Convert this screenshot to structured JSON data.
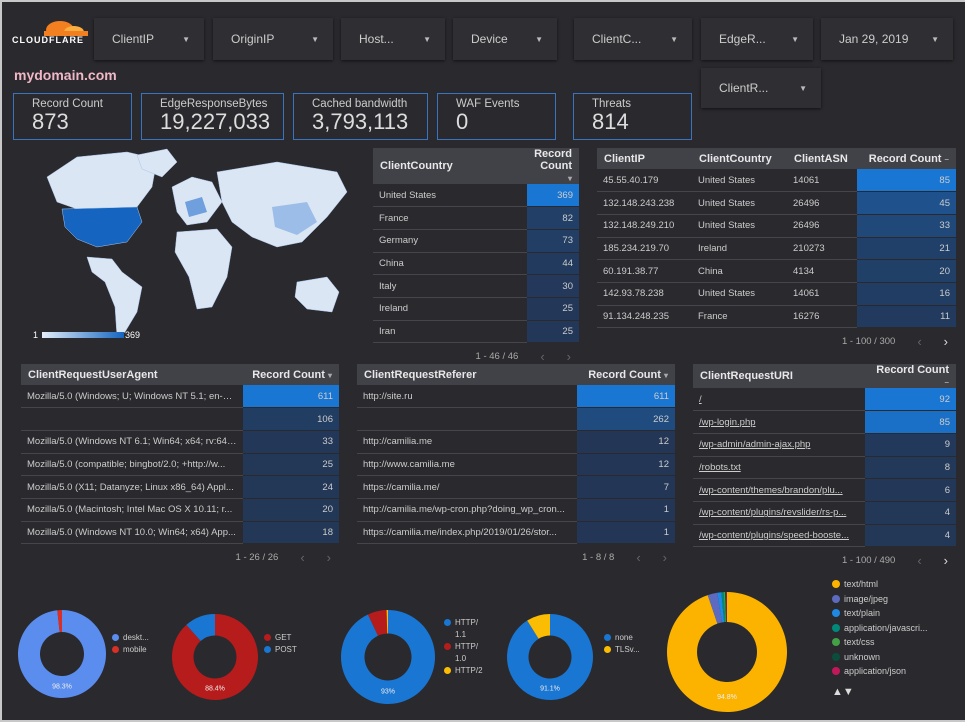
{
  "header": {
    "logo_text": "CLOUDFLARE",
    "title": "mydomain.com"
  },
  "filters": [
    {
      "label": "ClientIP"
    },
    {
      "label": "OriginIP"
    },
    {
      "label": "Host..."
    },
    {
      "label": "Device"
    },
    {
      "label": "ClientC..."
    },
    {
      "label": "EdgeR..."
    },
    {
      "label": "Jan 29, 2019"
    },
    {
      "label": "ClientR..."
    }
  ],
  "kpis": [
    {
      "label": "Record Count",
      "value": "873"
    },
    {
      "label": "EdgeResponseBytes",
      "value": "19,227,033"
    },
    {
      "label": "Cached bandwidth",
      "value": "3,793,113"
    },
    {
      "label": "WAF Events",
      "value": "0"
    },
    {
      "label": "Threats",
      "value": "814"
    }
  ],
  "map": {
    "legend_min": "1",
    "legend_max": "369",
    "highlight": "United States"
  },
  "colors": {
    "bar_max": "#1976d2",
    "bar_min": "#233655",
    "accent": "#3874c0"
  },
  "tables": [
    {
      "id": "country",
      "headers": [
        "ClientCountry",
        "Record Count"
      ],
      "sort": "▾",
      "rows": [
        [
          "United States",
          369
        ],
        [
          "France",
          82
        ],
        [
          "Germany",
          73
        ],
        [
          "China",
          44
        ],
        [
          "Italy",
          30
        ],
        [
          "Ireland",
          25
        ],
        [
          "Iran",
          25
        ]
      ],
      "pagination": "1 - 46 / 46"
    },
    {
      "id": "ip",
      "headers": [
        "ClientIP",
        "ClientCountry",
        "ClientASN",
        "Record Count"
      ],
      "sort": "–",
      "rows": [
        [
          "45.55.40.179",
          "United States",
          "14061",
          85
        ],
        [
          "132.148.243.238",
          "United States",
          "26496",
          45
        ],
        [
          "132.148.249.210",
          "United States",
          "26496",
          33
        ],
        [
          "185.234.219.70",
          "Ireland",
          "210273",
          21
        ],
        [
          "60.191.38.77",
          "China",
          "4134",
          20
        ],
        [
          "142.93.78.238",
          "United States",
          "14061",
          16
        ],
        [
          "91.134.248.235",
          "France",
          "16276",
          11
        ]
      ],
      "pagination": "1 - 100 / 300"
    },
    {
      "id": "ua",
      "headers": [
        "ClientRequestUserAgent",
        "Record Count"
      ],
      "sort": "▾",
      "rows": [
        [
          "Mozilla/5.0 (Windows; U; Windows NT 5.1; en-U...",
          611
        ],
        [
          "",
          106
        ],
        [
          "Mozilla/5.0 (Windows NT 6.1; Win64; x64; rv:64....",
          33
        ],
        [
          "Mozilla/5.0 (compatible; bingbot/2.0; +http://w...",
          25
        ],
        [
          "Mozilla/5.0 (X11; Datanyze; Linux x86_64) Appl...",
          24
        ],
        [
          "Mozilla/5.0 (Macintosh; Intel Mac OS X 10.11; r...",
          20
        ],
        [
          "Mozilla/5.0 (Windows NT 10.0; Win64; x64) App...",
          18
        ]
      ],
      "pagination": "1 - 26 / 26"
    },
    {
      "id": "ref",
      "headers": [
        "ClientRequestReferer",
        "Record Count"
      ],
      "sort": "▾",
      "rows": [
        [
          "http://site.ru",
          611
        ],
        [
          "",
          262
        ],
        [
          "http://camilia.me",
          12
        ],
        [
          "http://www.camilia.me",
          12
        ],
        [
          "https://camilia.me/",
          7
        ],
        [
          "http://camilia.me/wp-cron.php?doing_wp_cron...",
          1
        ],
        [
          "https://camilia.me/index.php/2019/01/26/stor...",
          1
        ]
      ],
      "pagination": "1 - 8 / 8"
    },
    {
      "id": "uri",
      "headers": [
        "ClientRequestURI",
        "Record Count"
      ],
      "sort": "–",
      "link": true,
      "rows": [
        [
          "/",
          92
        ],
        [
          "/wp-login.php",
          85
        ],
        [
          "/wp-admin/admin-ajax.php",
          9
        ],
        [
          "/robots.txt",
          8
        ],
        [
          "/wp-content/themes/brandon/plu...",
          6
        ],
        [
          "/wp-content/plugins/revslider/rs-p...",
          4
        ],
        [
          "/wp-content/plugins/speed-booste...",
          4
        ]
      ],
      "pagination": "1 - 100 / 490"
    }
  ],
  "chart_data": [
    {
      "type": "pie",
      "donut": true,
      "categories": [
        "deskt...",
        "mobile"
      ],
      "values": [
        98.3,
        1.7
      ],
      "colors": [
        "#5b8def",
        "#d93025"
      ],
      "label": "98.3%"
    },
    {
      "type": "pie",
      "donut": true,
      "categories": [
        "GET",
        "POST"
      ],
      "values": [
        88.4,
        11.6
      ],
      "colors": [
        "#b71c1c",
        "#1976d2"
      ],
      "label": "88.4%"
    },
    {
      "type": "pie",
      "donut": true,
      "categories": [
        "HTTP/ 1.1",
        "HTTP/ 1.0",
        "HTTP/2"
      ],
      "values": [
        93,
        6.5,
        0.5
      ],
      "colors": [
        "#1976d2",
        "#b71c1c",
        "#fbbc04"
      ],
      "label": "93%"
    },
    {
      "type": "pie",
      "donut": true,
      "categories": [
        "none",
        "TLSv..."
      ],
      "values": [
        91.1,
        8.9
      ],
      "colors": [
        "#1976d2",
        "#fbbc04"
      ],
      "label": "91.1%"
    },
    {
      "type": "pie",
      "donut": true,
      "categories": [
        "text/html",
        "image/jpeg",
        "text/plain",
        "application/javascri...",
        "text/css",
        "unknown",
        "application/json"
      ],
      "values": [
        94.8,
        2.6,
        1.1,
        0.6,
        0.4,
        0.3,
        0.2
      ],
      "colors": [
        "#fbb300",
        "#5c6bc0",
        "#1e88e5",
        "#00897b",
        "#43a047",
        "#0b4d3c",
        "#c2185b"
      ],
      "label": "94.8%",
      "legend_pager": "▲▼"
    }
  ]
}
